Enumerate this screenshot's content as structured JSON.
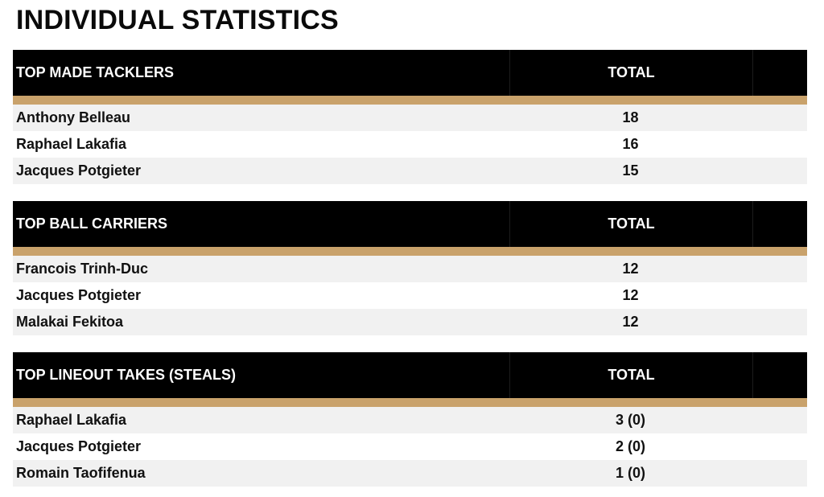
{
  "title": "INDIVIDUAL STATISTICS",
  "sections": [
    {
      "heading": "TOP MADE TACKLERS",
      "total_label": "TOTAL",
      "rows": [
        {
          "name": "Anthony Belleau",
          "total": "18"
        },
        {
          "name": "Raphael Lakafia",
          "total": "16"
        },
        {
          "name": "Jacques Potgieter",
          "total": "15"
        }
      ]
    },
    {
      "heading": "TOP BALL CARRIERS",
      "total_label": "TOTAL",
      "rows": [
        {
          "name": "Francois Trinh-Duc",
          "total": "12"
        },
        {
          "name": "Jacques Potgieter",
          "total": "12"
        },
        {
          "name": "Malakai Fekitoa",
          "total": "12"
        }
      ]
    },
    {
      "heading": "TOP LINEOUT TAKES (STEALS)",
      "total_label": "TOTAL",
      "rows": [
        {
          "name": "Raphael Lakafia",
          "total": "3 (0)"
        },
        {
          "name": "Jacques Potgieter",
          "total": "2 (0)"
        },
        {
          "name": "Romain Taofifenua",
          "total": "1 (0)"
        }
      ]
    }
  ],
  "colors": {
    "header_bg": "#000000",
    "accent_bar": "#c9a26b",
    "row_alt": "#f1f1f1"
  }
}
